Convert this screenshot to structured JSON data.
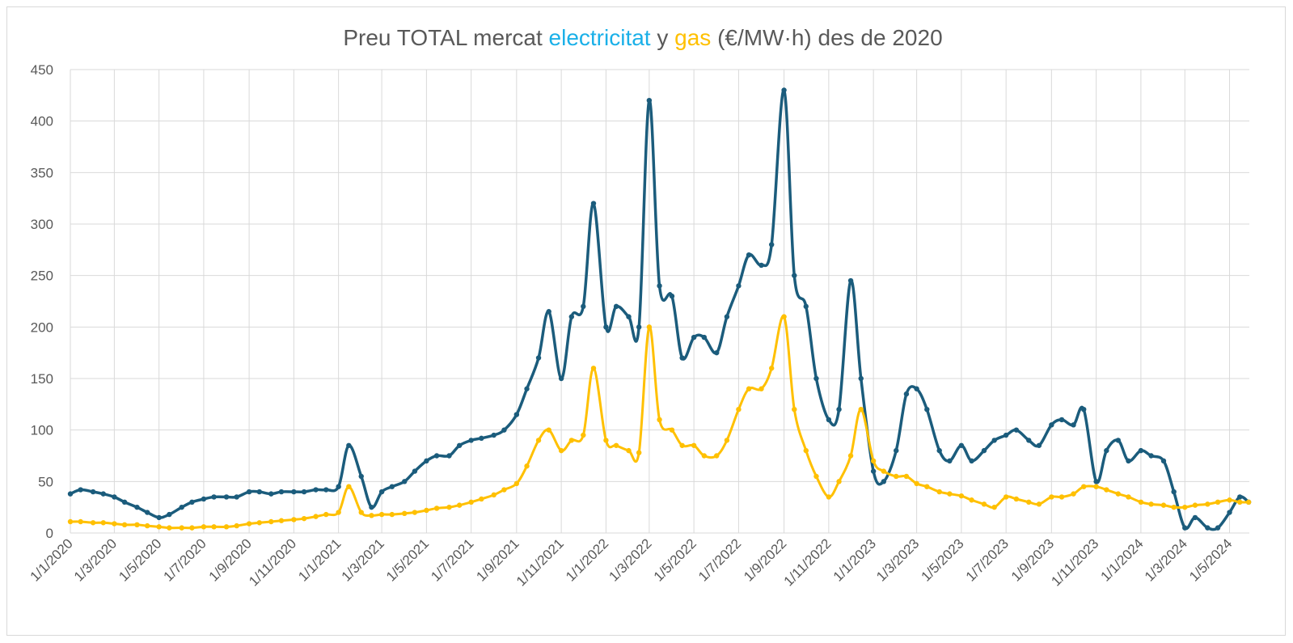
{
  "chart_data": {
    "type": "line",
    "title_parts": [
      "Preu TOTAL mercat ",
      "electricitat",
      " y ",
      "gas",
      " (€/MW·h) des de 2020"
    ],
    "x": [
      "1/1/2020",
      "15/1/2020",
      "1/2/2020",
      "15/2/2020",
      "1/3/2020",
      "15/3/2020",
      "1/4/2020",
      "15/4/2020",
      "1/5/2020",
      "15/5/2020",
      "1/6/2020",
      "15/6/2020",
      "1/7/2020",
      "15/7/2020",
      "1/8/2020",
      "15/8/2020",
      "1/9/2020",
      "15/9/2020",
      "1/10/2020",
      "15/10/2020",
      "1/11/2020",
      "15/11/2020",
      "1/12/2020",
      "15/12/2020",
      "1/1/2021",
      "15/1/2021",
      "1/2/2021",
      "15/2/2021",
      "1/3/2021",
      "15/3/2021",
      "1/4/2021",
      "15/4/2021",
      "1/5/2021",
      "15/5/2021",
      "1/6/2021",
      "15/6/2021",
      "1/7/2021",
      "15/7/2021",
      "1/8/2021",
      "15/8/2021",
      "1/9/2021",
      "15/9/2021",
      "1/10/2021",
      "15/10/2021",
      "1/11/2021",
      "15/11/2021",
      "1/12/2021",
      "15/12/2021",
      "1/1/2022",
      "15/1/2022",
      "1/2/2022",
      "15/2/2022",
      "1/3/2022",
      "15/3/2022",
      "1/4/2022",
      "15/4/2022",
      "1/5/2022",
      "15/5/2022",
      "1/6/2022",
      "15/6/2022",
      "1/7/2022",
      "15/7/2022",
      "1/8/2022",
      "15/8/2022",
      "1/9/2022",
      "15/9/2022",
      "1/10/2022",
      "15/10/2022",
      "1/11/2022",
      "15/11/2022",
      "1/12/2022",
      "15/12/2022",
      "1/1/2023",
      "15/1/2023",
      "1/2/2023",
      "15/2/2023",
      "1/3/2023",
      "15/3/2023",
      "1/4/2023",
      "15/4/2023",
      "1/5/2023",
      "15/5/2023",
      "1/6/2023",
      "15/6/2023",
      "1/7/2023",
      "15/7/2023",
      "1/8/2023",
      "15/8/2023",
      "1/9/2023",
      "15/9/2023",
      "1/10/2023",
      "15/10/2023",
      "1/11/2023",
      "15/11/2023",
      "1/12/2023",
      "15/12/2023",
      "1/1/2024",
      "15/1/2024",
      "1/2/2024",
      "15/2/2024",
      "1/3/2024",
      "15/3/2024",
      "1/4/2024",
      "15/4/2024",
      "1/5/2024",
      "15/5/2024",
      "27/5/2024"
    ],
    "series": [
      {
        "color": "#1b5c7c",
        "values": [
          38,
          42,
          40,
          38,
          35,
          30,
          25,
          20,
          15,
          18,
          25,
          30,
          33,
          35,
          35,
          35,
          40,
          40,
          38,
          40,
          40,
          40,
          42,
          42,
          45,
          85,
          55,
          25,
          40,
          45,
          50,
          60,
          70,
          75,
          75,
          85,
          90,
          92,
          95,
          100,
          115,
          140,
          170,
          215,
          150,
          210,
          220,
          320,
          200,
          220,
          210,
          200,
          420,
          240,
          230,
          170,
          190,
          190,
          175,
          210,
          240,
          270,
          260,
          280,
          430,
          250,
          220,
          150,
          110,
          120,
          245,
          150,
          60,
          50,
          80,
          135,
          140,
          120,
          80,
          70,
          85,
          70,
          80,
          90,
          95,
          100,
          90,
          85,
          105,
          110,
          105,
          120,
          50,
          80,
          90,
          70,
          80,
          75,
          70,
          40,
          5,
          15,
          5,
          5,
          20,
          35,
          30
        ]
      },
      {
        "color": "#ffc000",
        "values": [
          11,
          11,
          10,
          10,
          9,
          8,
          8,
          7,
          6,
          5,
          5,
          5,
          6,
          6,
          6,
          7,
          9,
          10,
          11,
          12,
          13,
          14,
          16,
          18,
          20,
          45,
          20,
          17,
          18,
          18,
          19,
          20,
          22,
          24,
          25,
          27,
          30,
          33,
          37,
          42,
          48,
          65,
          90,
          100,
          80,
          90,
          95,
          160,
          90,
          85,
          80,
          78,
          200,
          110,
          100,
          85,
          85,
          75,
          75,
          90,
          120,
          140,
          140,
          160,
          210,
          120,
          80,
          55,
          35,
          50,
          75,
          120,
          70,
          60,
          55,
          55,
          48,
          45,
          40,
          38,
          36,
          32,
          28,
          25,
          35,
          33,
          30,
          28,
          35,
          35,
          38,
          45,
          45,
          42,
          38,
          35,
          30,
          28,
          27,
          25,
          25,
          27,
          28,
          30,
          32,
          30,
          30
        ]
      }
    ],
    "xlim": [
      "1/1/2020",
      "28/5/2024"
    ],
    "xticks": [
      "1/1/2020",
      "1/3/2020",
      "1/5/2020",
      "1/7/2020",
      "1/9/2020",
      "1/11/2020",
      "1/1/2021",
      "1/3/2021",
      "1/5/2021",
      "1/7/2021",
      "1/9/2021",
      "1/11/2021",
      "1/1/2022",
      "1/3/2022",
      "1/5/2022",
      "1/7/2022",
      "1/9/2022",
      "1/11/2022",
      "1/1/2023",
      "1/3/2023",
      "1/5/2023",
      "1/7/2023",
      "1/9/2023",
      "1/11/2023",
      "1/1/2024",
      "1/3/2024",
      "1/5/2024"
    ],
    "ylim": [
      0,
      450
    ],
    "yticks": [
      0,
      50,
      100,
      150,
      200,
      250,
      300,
      350,
      400,
      450
    ],
    "grid": true
  }
}
